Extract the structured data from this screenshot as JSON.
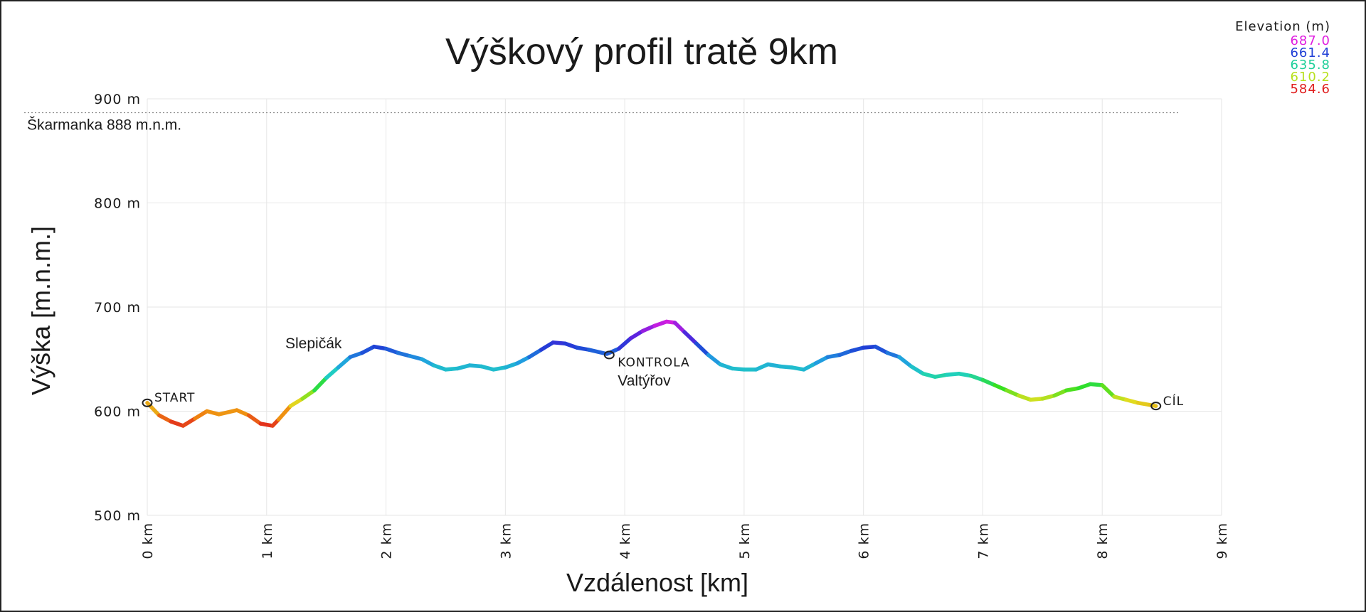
{
  "chart_data": {
    "type": "line",
    "title": "Výškový profil tratě 9km",
    "xlabel": "Vzdálenost [km]",
    "ylabel": "Výška [m.n.m.]",
    "xlim": [
      0,
      9
    ],
    "ylim": [
      500,
      900
    ],
    "grid": true,
    "x_ticks": [
      "0 km",
      "1 km",
      "2 km",
      "3 km",
      "4 km",
      "5 km",
      "6 km",
      "7 km",
      "8 km",
      "9 km"
    ],
    "y_ticks": [
      "500 m",
      "600 m",
      "700 m",
      "800 m",
      "900 m"
    ],
    "series": [
      {
        "values_unit": "m",
        "points": [
          [
            0.0,
            608
          ],
          [
            0.1,
            596
          ],
          [
            0.2,
            590
          ],
          [
            0.3,
            586
          ],
          [
            0.4,
            593
          ],
          [
            0.5,
            600
          ],
          [
            0.6,
            597
          ],
          [
            0.75,
            601
          ],
          [
            0.85,
            596
          ],
          [
            0.95,
            588
          ],
          [
            1.05,
            586
          ],
          [
            1.1,
            592
          ],
          [
            1.2,
            605
          ],
          [
            1.3,
            612
          ],
          [
            1.4,
            620
          ],
          [
            1.5,
            632
          ],
          [
            1.6,
            642
          ],
          [
            1.7,
            652
          ],
          [
            1.8,
            656
          ],
          [
            1.9,
            662
          ],
          [
            2.0,
            660
          ],
          [
            2.1,
            656
          ],
          [
            2.2,
            653
          ],
          [
            2.3,
            650
          ],
          [
            2.4,
            644
          ],
          [
            2.5,
            640
          ],
          [
            2.6,
            641
          ],
          [
            2.7,
            644
          ],
          [
            2.8,
            643
          ],
          [
            2.9,
            640
          ],
          [
            3.0,
            642
          ],
          [
            3.1,
            646
          ],
          [
            3.2,
            652
          ],
          [
            3.3,
            659
          ],
          [
            3.4,
            666
          ],
          [
            3.5,
            665
          ],
          [
            3.6,
            661
          ],
          [
            3.7,
            659
          ],
          [
            3.85,
            655
          ],
          [
            3.95,
            660
          ],
          [
            4.05,
            670
          ],
          [
            4.15,
            677
          ],
          [
            4.25,
            682
          ],
          [
            4.35,
            686
          ],
          [
            4.42,
            685
          ],
          [
            4.5,
            676
          ],
          [
            4.6,
            665
          ],
          [
            4.7,
            654
          ],
          [
            4.8,
            645
          ],
          [
            4.9,
            641
          ],
          [
            5.0,
            640
          ],
          [
            5.1,
            640
          ],
          [
            5.2,
            645
          ],
          [
            5.3,
            643
          ],
          [
            5.4,
            642
          ],
          [
            5.5,
            640
          ],
          [
            5.6,
            646
          ],
          [
            5.7,
            652
          ],
          [
            5.8,
            654
          ],
          [
            5.9,
            658
          ],
          [
            6.0,
            661
          ],
          [
            6.1,
            662
          ],
          [
            6.2,
            656
          ],
          [
            6.3,
            652
          ],
          [
            6.4,
            643
          ],
          [
            6.5,
            636
          ],
          [
            6.6,
            633
          ],
          [
            6.7,
            635
          ],
          [
            6.8,
            636
          ],
          [
            6.9,
            634
          ],
          [
            7.0,
            630
          ],
          [
            7.1,
            625
          ],
          [
            7.2,
            620
          ],
          [
            7.3,
            615
          ],
          [
            7.4,
            611
          ],
          [
            7.5,
            612
          ],
          [
            7.6,
            615
          ],
          [
            7.7,
            620
          ],
          [
            7.8,
            622
          ],
          [
            7.9,
            626
          ],
          [
            8.0,
            625
          ],
          [
            8.1,
            614
          ],
          [
            8.2,
            611
          ],
          [
            8.3,
            608
          ],
          [
            8.4,
            606
          ],
          [
            8.45,
            605
          ]
        ]
      }
    ],
    "reference_line": {
      "y": 888,
      "label": "Škarmanka 888 m.n.m."
    },
    "annotations": [
      {
        "x": 0.0,
        "y": 608,
        "label": "START"
      },
      {
        "x": 3.87,
        "y": 654,
        "label": "KONTROLA",
        "sublabel": "Valtýřov"
      },
      {
        "x": 8.45,
        "y": 605,
        "label": "CÍL"
      },
      {
        "x": 1.2,
        "y": 662,
        "label": "Slepičák"
      }
    ],
    "legend": {
      "title": "Elevation (m)",
      "position": "top-right",
      "entries": [
        {
          "value": "687.0",
          "color": "#e01ee0"
        },
        {
          "value": "661.4",
          "color": "#1f3fd6"
        },
        {
          "value": "635.8",
          "color": "#1fcf9a"
        },
        {
          "value": "610.2",
          "color": "#b8e01e"
        },
        {
          "value": "584.6",
          "color": "#e01e1e"
        }
      ]
    },
    "color_scale": {
      "min": 584.6,
      "max": 687.0,
      "stops": [
        "#e01e1e",
        "#f08a10",
        "#e0e020",
        "#30e020",
        "#20d0c0",
        "#20a0e0",
        "#1f3fd6",
        "#6020e0",
        "#e01ee0"
      ]
    }
  }
}
